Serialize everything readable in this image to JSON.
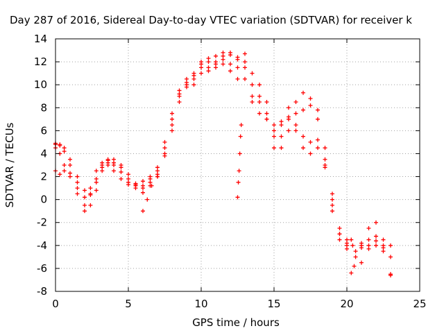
{
  "chart_data": {
    "type": "scatter",
    "title": "Day 287 of 2016, Sidereal Day-to-day VTEC variation (SDTVAR) for receiver k",
    "xlabel": "GPS time / hours",
    "ylabel": "SDTVAR / TECUs",
    "xlim": [
      0,
      25
    ],
    "ylim": [
      -8,
      14
    ],
    "xticks": [
      0,
      5,
      10,
      15,
      20,
      25
    ],
    "yticks": [
      -8,
      -6,
      -4,
      -2,
      0,
      2,
      4,
      6,
      8,
      10,
      12,
      14
    ],
    "grid": true,
    "marker": "+",
    "color": "#ff0000",
    "series": [
      {
        "x": [
          0,
          0.3,
          0.6,
          1.0,
          1.5,
          2.0,
          2.4,
          2.8,
          3.2,
          3.6,
          4.0,
          4.5,
          5.0,
          5.5,
          6.0,
          6.5,
          7.0,
          7.5,
          8.0,
          8.5,
          9.0,
          9.5,
          10.0,
          10.5,
          11.0,
          11.5,
          12.0,
          12.5,
          13.0,
          13.5,
          14.0,
          14.5,
          15.0,
          15.5,
          16.0,
          16.5,
          17.0,
          17.5,
          18.0,
          18.5,
          19.0,
          19.5,
          20.0
        ],
        "y": [
          4.8,
          4.7,
          4.2,
          3.0,
          1.5,
          0.2,
          0.4,
          1.8,
          3.2,
          3.4,
          3.0,
          2.4,
          1.8,
          1.2,
          1.0,
          1.5,
          2.2,
          3.8,
          6.0,
          8.5,
          9.8,
          10.5,
          11.8,
          12.0,
          12.5,
          12.8,
          12.6,
          12.2,
          12.7,
          11.0,
          10.0,
          8.5,
          6.5,
          5.5,
          7.0,
          6.5,
          5.5,
          5.0,
          5.2,
          3.5,
          0.5,
          -3.0,
          -4.0
        ]
      },
      {
        "x": [
          0,
          0.3,
          0.6,
          1.0,
          1.5,
          2.0,
          2.4,
          2.8,
          3.2,
          3.6,
          4.0,
          4.5,
          5.0,
          5.5,
          6.0,
          6.5,
          7.0,
          7.5,
          8.0,
          8.5,
          9.0,
          9.5,
          10.0,
          10.5,
          11.0,
          11.5,
          12.0,
          12.5,
          13.0,
          13.5,
          14.0,
          14.5,
          15.0,
          15.5,
          16.0,
          16.5,
          17.0,
          17.5,
          18.0,
          18.5,
          19.0,
          19.5,
          20.0
        ],
        "y": [
          4.5,
          4.0,
          3.0,
          2.0,
          0.5,
          -1.0,
          -0.5,
          0.8,
          2.5,
          3.2,
          3.5,
          3.0,
          2.2,
          1.4,
          1.2,
          1.8,
          2.5,
          4.5,
          7.0,
          9.2,
          10.5,
          11.0,
          12.0,
          12.3,
          12.0,
          12.2,
          11.8,
          11.5,
          12.0,
          10.0,
          8.5,
          7.0,
          4.5,
          4.5,
          6.0,
          6.0,
          4.5,
          4.0,
          4.5,
          2.8,
          -0.5,
          -3.5,
          -4.3
        ]
      },
      {
        "x": [
          0,
          0.3,
          0.6,
          1.0,
          1.5,
          2.0,
          2.4,
          2.8,
          3.2,
          3.6,
          4.0,
          4.5,
          5.0,
          5.5,
          6.0,
          6.5,
          7.0,
          7.5,
          8.0,
          8.5,
          9.0,
          9.5,
          10.0,
          10.5,
          11.0,
          11.5,
          12.0,
          12.5,
          13.0,
          13.5,
          14.0,
          14.5,
          15.0,
          15.5,
          16.0,
          16.5,
          17.0,
          17.5,
          18.0,
          18.5,
          19.0,
          19.5,
          20.0
        ],
        "y": [
          2.5,
          2.2,
          2.5,
          2.3,
          1.0,
          -0.5,
          0.5,
          1.5,
          2.8,
          3.5,
          3.2,
          2.8,
          1.5,
          1.0,
          0.6,
          1.2,
          2.0,
          4.0,
          6.5,
          9.0,
          10.0,
          10.8,
          11.5,
          11.2,
          11.5,
          11.8,
          11.2,
          10.5,
          11.5,
          9.0,
          9.0,
          7.5,
          5.5,
          6.8,
          8.0,
          7.5,
          7.8,
          8.2,
          7.0,
          3.0,
          -1.0,
          -3.0,
          -3.8
        ]
      },
      {
        "x": [
          0,
          0.3,
          0.6,
          1.0,
          1.5,
          2.0,
          2.4,
          2.8,
          3.2,
          3.6,
          4.0,
          4.5,
          5.0,
          5.5,
          6.0,
          6.5,
          7.0,
          7.5,
          8.0,
          8.5,
          9.0,
          9.5,
          10.0,
          10.5,
          11.0,
          11.5,
          12.0,
          12.5,
          13.0,
          13.5,
          14.0,
          14.5,
          15.0,
          15.5,
          16.0,
          16.5,
          17.0,
          17.5,
          18.0,
          18.5,
          19.0,
          19.5,
          20.0
        ],
        "y": [
          4.9,
          4.8,
          4.5,
          3.5,
          2.0,
          0.8,
          1.0,
          2.5,
          3.0,
          3.0,
          2.5,
          1.8,
          1.3,
          1.3,
          1.6,
          2.0,
          2.8,
          5.0,
          7.5,
          9.5,
          10.2,
          10.0,
          11.0,
          11.5,
          11.8,
          12.5,
          12.8,
          12.4,
          10.5,
          8.5,
          7.5,
          7.0,
          6.0,
          6.5,
          7.2,
          8.5,
          9.3,
          8.8,
          7.8,
          4.5,
          0.0,
          -2.5,
          -3.5
        ]
      },
      {
        "x": [
          6.0,
          6.3,
          6.6,
          7.0
        ],
        "y": [
          -1.0,
          0.0,
          1.2,
          2.0
        ]
      },
      {
        "x": [
          12.5,
          12.55,
          12.6,
          12.65,
          12.7,
          12.75
        ],
        "y": [
          0.2,
          1.5,
          2.5,
          4.0,
          5.5,
          6.5
        ]
      },
      {
        "x": [
          20.3,
          20.6,
          21.0,
          21.5,
          22.0,
          22.5,
          23.0
        ],
        "y": [
          -6.4,
          -5.0,
          -4.0,
          -3.5,
          -4.0,
          -4.5,
          -6.5
        ]
      },
      {
        "x": [
          20.3,
          20.6,
          21.0,
          21.5,
          22.0,
          22.5,
          23.0
        ],
        "y": [
          -3.5,
          -4.5,
          -5.5,
          -4.0,
          -3.2,
          -4.0,
          -5.0
        ]
      },
      {
        "x": [
          20.5,
          21.0,
          21.5,
          22.0,
          22.5,
          23.0
        ],
        "y": [
          -5.8,
          -4.2,
          -2.5,
          -2.0,
          -3.5,
          -4.0
        ]
      },
      {
        "x": [
          20.4,
          21.0,
          21.5,
          22.0,
          22.5,
          23.0
        ],
        "y": [
          -4.0,
          -3.8,
          -4.3,
          -3.6,
          -4.2,
          -6.6
        ]
      }
    ]
  }
}
